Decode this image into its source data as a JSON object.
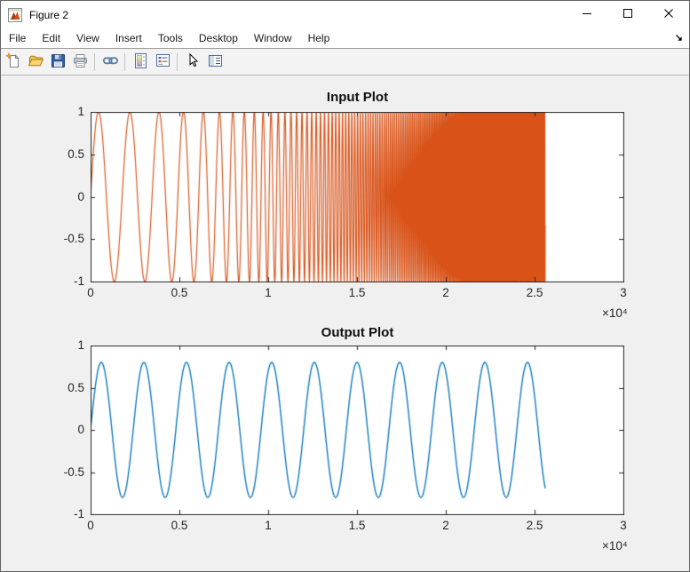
{
  "window": {
    "title": "Figure 2",
    "controls": {
      "minimize": "minimize",
      "maximize": "maximize",
      "close": "close"
    },
    "dock_tooltip": "Dock Figure"
  },
  "menu": {
    "items": [
      "File",
      "Edit",
      "View",
      "Insert",
      "Tools",
      "Desktop",
      "Window",
      "Help"
    ]
  },
  "toolbar": {
    "icons": [
      "new-figure-icon",
      "open-file-icon",
      "save-figure-icon",
      "print-figure-icon",
      "link-plot-icon",
      "insert-colorbar-icon",
      "insert-legend-icon",
      "edit-plot-icon",
      "plot-tools-icon"
    ]
  },
  "chart_data": [
    {
      "type": "line",
      "title": "Input Plot",
      "xlim": [
        0,
        30000
      ],
      "ylim": [
        -1,
        1
      ],
      "xticks": [
        0,
        5000,
        10000,
        15000,
        20000,
        25000,
        30000
      ],
      "xtick_labels": [
        "0",
        "0.5",
        "1",
        "1.5",
        "2",
        "2.5",
        "3"
      ],
      "yticks": [
        -1,
        -0.5,
        0,
        0.5,
        1
      ],
      "ytick_labels": [
        "-1",
        "-0.5",
        "0",
        "0.5",
        "1"
      ],
      "x_multiplier": "×10⁴",
      "axis_color": "#262626",
      "background": "#ffffff",
      "grid": false,
      "series": [
        {
          "name": "input-chirp",
          "color": "#d95319",
          "signal": "chirp",
          "amplitude": 1,
          "f0": 0.00056,
          "f3": 1.71e-15,
          "t_start": 0,
          "t_end": 25600,
          "dt": 1,
          "width": 1.15,
          "description": "Frequency-sweep sine (chirp), amplitude 1, instantaneous frequency f0 + f3*t^3 cycles/sample rising from ~0.00056 to ~0.029; oscillations merge into a solid band after ~x=1.6e4 and the signal ends at sample 25600 (~2.56e4)."
        }
      ]
    },
    {
      "type": "line",
      "title": "Output Plot",
      "xlim": [
        0,
        30000
      ],
      "ylim": [
        -1,
        1
      ],
      "xticks": [
        0,
        5000,
        10000,
        15000,
        20000,
        25000,
        30000
      ],
      "xtick_labels": [
        "0",
        "0.5",
        "1",
        "1.5",
        "2",
        "2.5",
        "3"
      ],
      "yticks": [
        -1,
        -0.5,
        0,
        0.5,
        1
      ],
      "ytick_labels": [
        "-1",
        "-0.5",
        "0",
        "0.5",
        "1"
      ],
      "x_multiplier": "×10⁴",
      "axis_color": "#262626",
      "background": "#ffffff",
      "grid": false,
      "series": [
        {
          "name": "output-sine",
          "color": "#0072bd",
          "signal": "sine",
          "amplitude": 0.8,
          "period": 2400,
          "t_start": 0,
          "t_end": 25600,
          "dt": 8,
          "width": 1.3,
          "description": "Constant-frequency sine, amplitude 0.8, period 2400 samples (~10.7 cycles), ends at sample 25600 (~2.56e4) at value ~ -0.69."
        }
      ]
    }
  ]
}
